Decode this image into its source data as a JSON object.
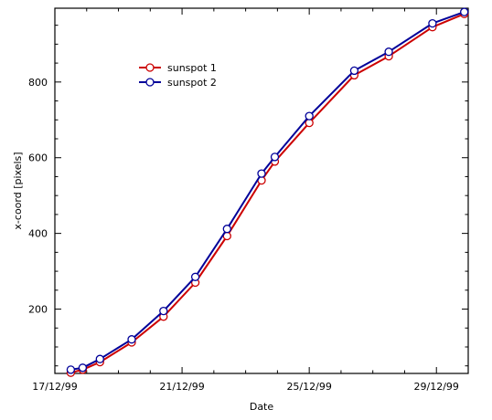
{
  "chart_data": {
    "type": "line",
    "title": "",
    "xlabel": "Date",
    "ylabel": "x-coord [pixels]",
    "x_ticks": [
      "17/12/99",
      "21/12/99",
      "25/12/99",
      "29/12/99"
    ],
    "y_ticks": [
      "200",
      "400",
      "600",
      "800"
    ],
    "xlim": [
      "1999-12-17",
      "1999-12-30"
    ],
    "ylim": [
      30,
      995
    ],
    "legend_position": "top-left",
    "grid": false,
    "series": [
      {
        "name": "sunspot 1",
        "color": "#cc0000",
        "marker": "circle",
        "x": [
          "1999-12-17T12:00",
          "1999-12-17T21:00",
          "1999-12-18T10:00",
          "1999-12-19T10:00",
          "1999-12-20T10:00",
          "1999-12-21T10:00",
          "1999-12-22T10:00",
          "1999-12-23T12:00",
          "1999-12-23T22:00",
          "1999-12-25T00:00",
          "1999-12-26T10:00",
          "1999-12-27T12:00",
          "1999-12-28T21:00",
          "1999-12-29T21:00"
        ],
        "y": [
          32,
          40,
          60,
          112,
          180,
          270,
          393,
          540,
          590,
          692,
          818,
          868,
          945,
          980
        ]
      },
      {
        "name": "sunspot 2",
        "color": "#000099",
        "marker": "circle",
        "x": [
          "1999-12-17T12:00",
          "1999-12-17T21:00",
          "1999-12-18T10:00",
          "1999-12-19T10:00",
          "1999-12-20T10:00",
          "1999-12-21T10:00",
          "1999-12-22T10:00",
          "1999-12-23T12:00",
          "1999-12-23T22:00",
          "1999-12-25T00:00",
          "1999-12-26T10:00",
          "1999-12-27T12:00",
          "1999-12-28T21:00",
          "1999-12-29T21:00"
        ],
        "y": [
          40,
          45,
          68,
          120,
          195,
          285,
          412,
          558,
          602,
          710,
          830,
          880,
          955,
          985
        ]
      }
    ]
  }
}
